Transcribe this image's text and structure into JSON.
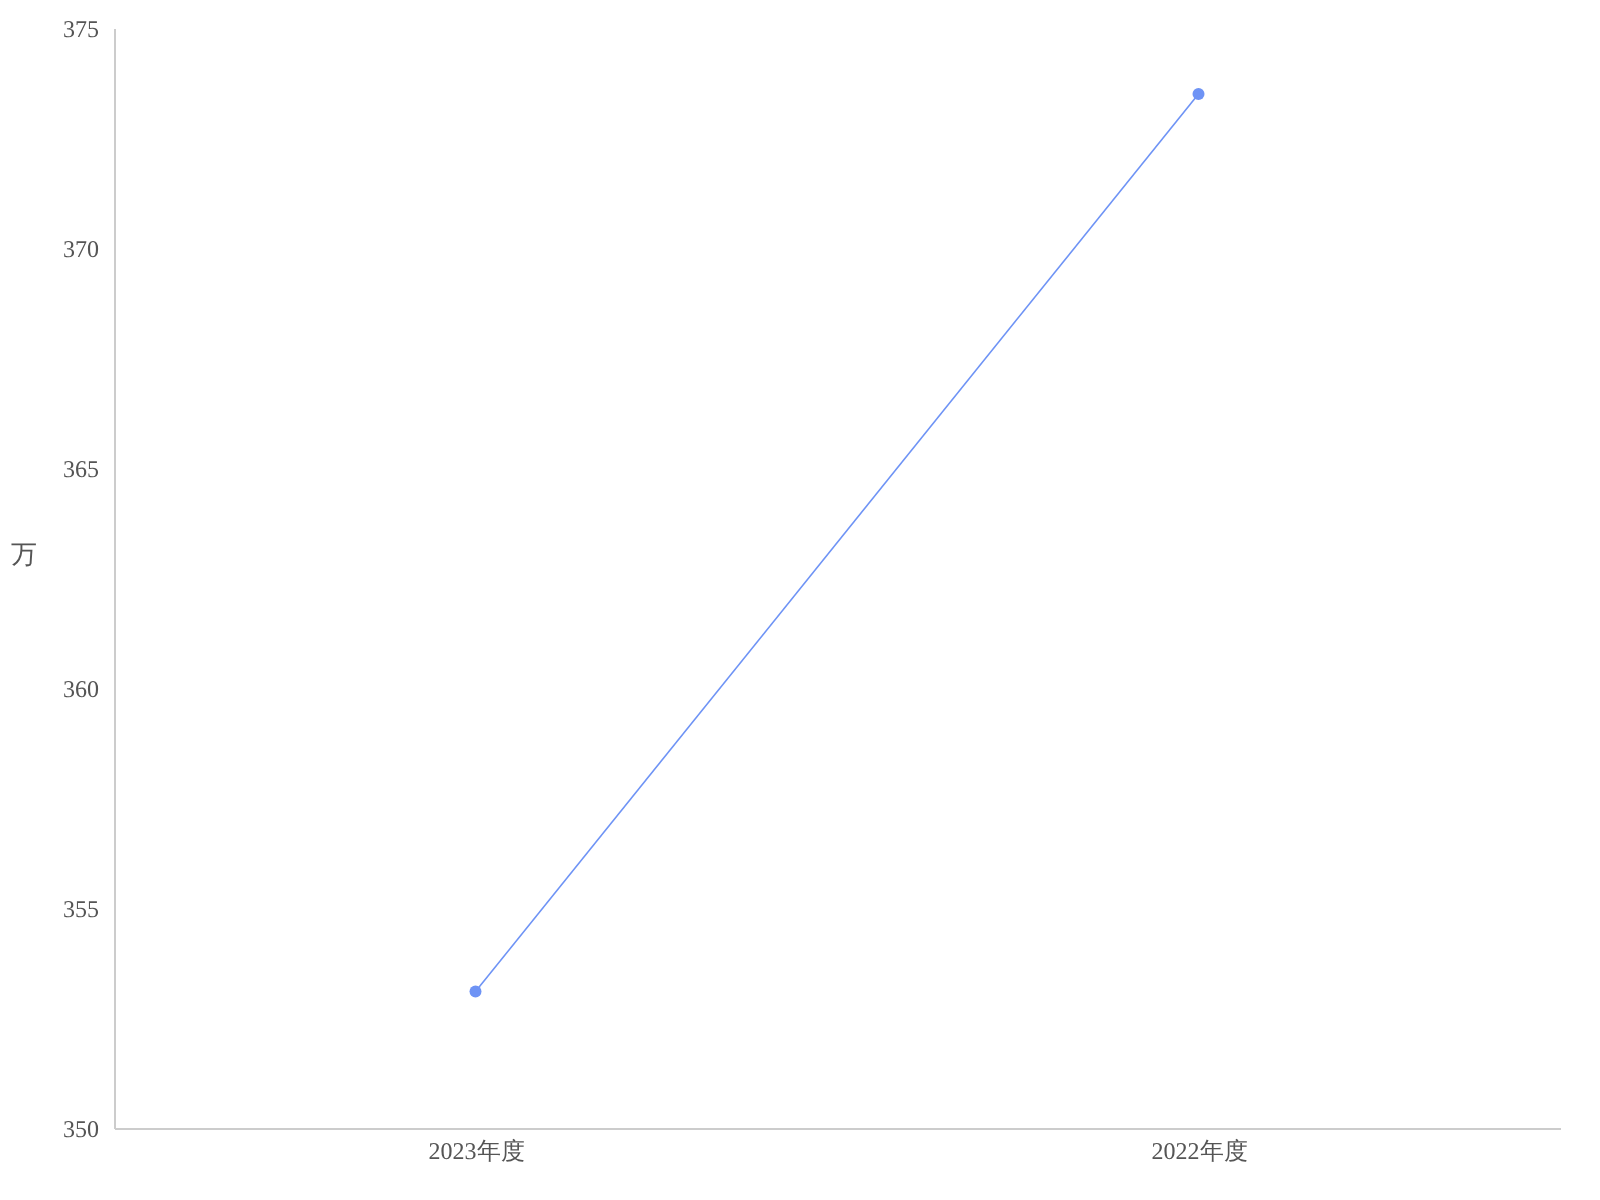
{
  "chart_data": {
    "type": "line",
    "ylabel": "万",
    "categories": [
      "2023年度",
      "2022年度"
    ],
    "series": [
      {
        "color": "#6e93f5",
        "values": [
          353.1,
          373.5
        ]
      }
    ],
    "ylim": [
      350,
      375
    ],
    "yticks": [
      350,
      355,
      360,
      365,
      370,
      375
    ],
    "marker": "circle"
  }
}
